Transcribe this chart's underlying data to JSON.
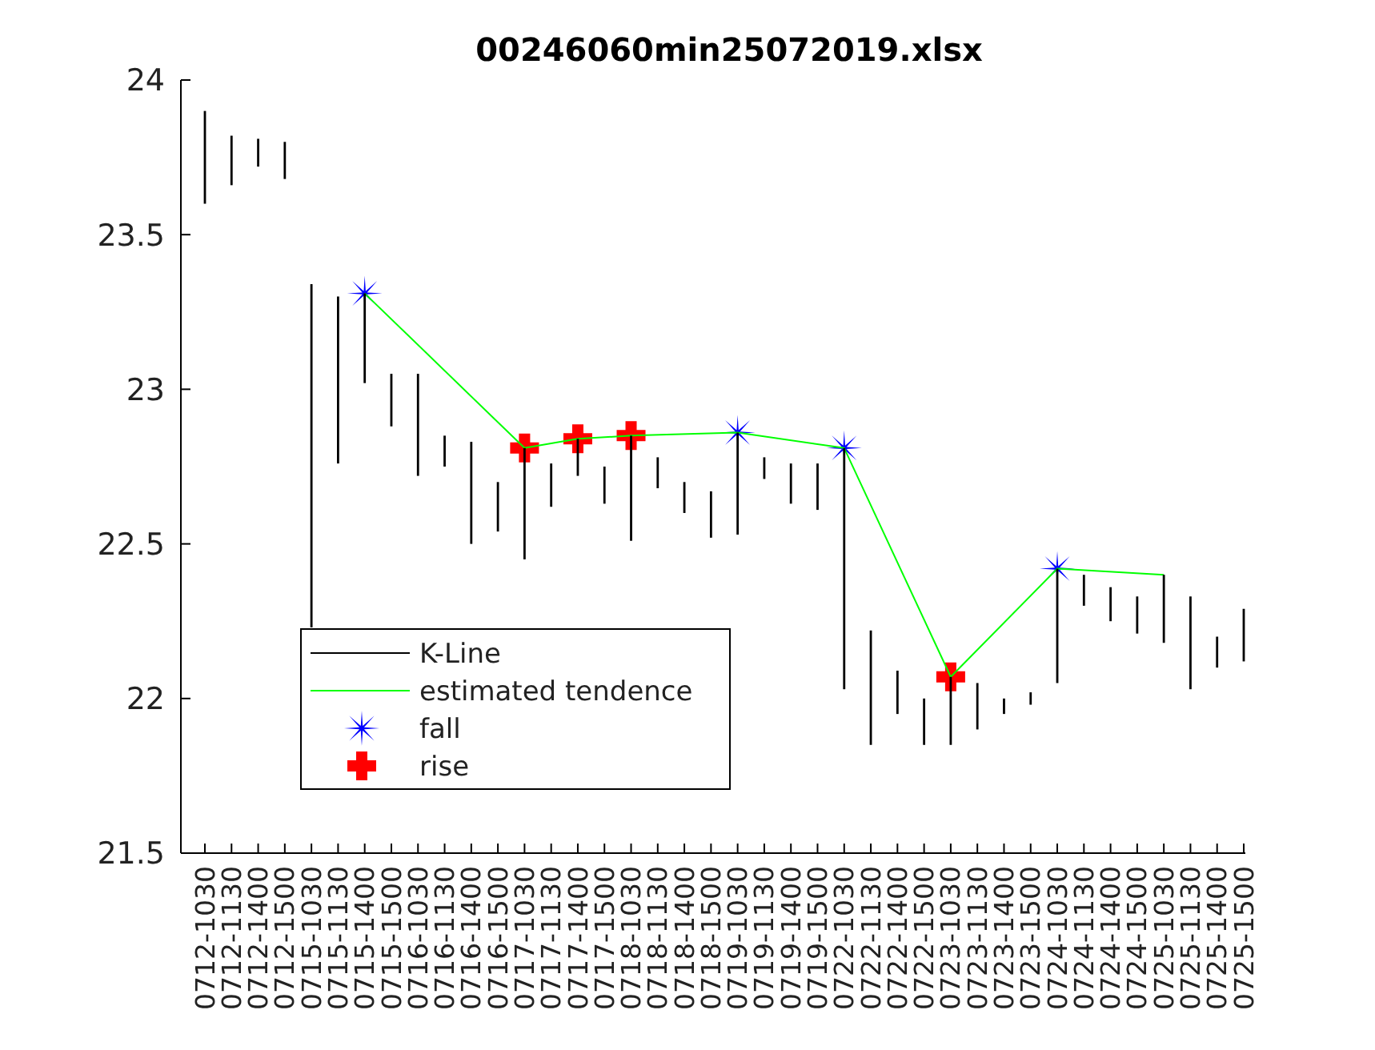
{
  "chart_data": {
    "type": "bar",
    "title": "00246060min25072019.xlsx",
    "categories": [
      "0712-1030",
      "0712-1130",
      "0712-1400",
      "0712-1500",
      "0715-1030",
      "0715-1130",
      "0715-1400",
      "0715-1500",
      "0716-1030",
      "0716-1130",
      "0716-1400",
      "0716-1500",
      "0717-1030",
      "0717-1130",
      "0717-1400",
      "0717-1500",
      "0718-1030",
      "0718-1130",
      "0718-1400",
      "0718-1500",
      "0719-1030",
      "0719-1130",
      "0719-1400",
      "0719-1500",
      "0722-1030",
      "0722-1130",
      "0722-1400",
      "0722-1500",
      "0723-1030",
      "0723-1130",
      "0723-1400",
      "0723-1500",
      "0724-1030",
      "0724-1130",
      "0724-1400",
      "0724-1500",
      "0725-1030",
      "0725-1130",
      "0725-1400",
      "0725-1500"
    ],
    "ylim": [
      21.5,
      24
    ],
    "yticks": [
      21.5,
      22,
      22.5,
      23,
      23.5,
      24
    ],
    "grid": false,
    "legend": "bottom left",
    "series": [
      {
        "name": "K-Line",
        "color": "#000000",
        "base": [
          23.6,
          23.66,
          23.72,
          23.68,
          22.23,
          22.76,
          23.02,
          22.88,
          22.72,
          22.75,
          22.5,
          22.54,
          22.45,
          22.62,
          22.72,
          22.63,
          22.51,
          22.68,
          22.6,
          22.52,
          22.53,
          22.71,
          22.63,
          22.61,
          22.03,
          21.85,
          21.95,
          21.85,
          21.85,
          21.9,
          21.95,
          21.98,
          22.05,
          22.3,
          22.25,
          22.21,
          22.18,
          22.03,
          22.1,
          22.12
        ],
        "values": [
          0.3,
          0.16,
          0.09,
          0.12,
          1.11,
          0.54,
          0.29,
          0.17,
          0.33,
          0.1,
          0.33,
          0.16,
          0.36,
          0.14,
          0.12,
          0.12,
          0.34,
          0.1,
          0.1,
          0.15,
          0.33,
          0.07,
          0.13,
          0.15,
          0.78,
          0.37,
          0.14,
          0.15,
          0.22,
          0.15,
          0.05,
          0.04,
          0.37,
          0.1,
          0.11,
          0.12,
          0.22,
          0.3,
          0.1,
          0.17
        ]
      },
      {
        "name": "estimated tendence",
        "type": "line",
        "color": "#00ff00",
        "line_style": "solid",
        "marker": "none",
        "x": [
          "0715-1400",
          "0717-1030",
          "0717-1400",
          "0718-1030",
          "0719-1030",
          "0722-1030",
          "0723-1030",
          "0724-1030",
          "0725-1030"
        ],
        "values": [
          23.31,
          22.81,
          22.84,
          22.85,
          22.86,
          22.81,
          22.07,
          22.42,
          22.4
        ]
      },
      {
        "name": "fall",
        "type": "scatter",
        "color": "#0000ff",
        "marker": "star",
        "x": [
          "0715-1400",
          "0719-1030",
          "0722-1030",
          "0724-1030"
        ],
        "values": [
          23.31,
          22.86,
          22.81,
          22.42
        ]
      },
      {
        "name": "rise",
        "type": "scatter",
        "color": "#ff0000",
        "marker": "cross",
        "x": [
          "0717-1030",
          "0717-1400",
          "0718-1030",
          "0723-1030"
        ],
        "values": [
          22.81,
          22.84,
          22.85,
          22.07
        ]
      }
    ]
  }
}
